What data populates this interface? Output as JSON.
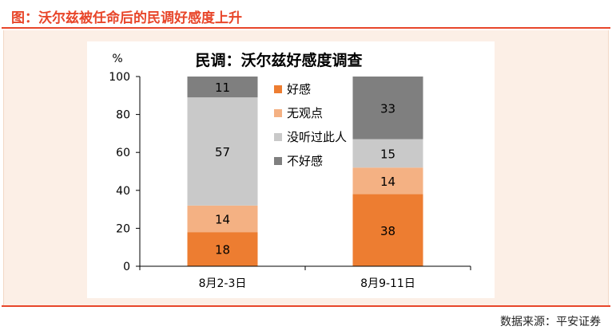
{
  "header": {
    "title": "图：沃尔兹被任命后的民调好感度上升"
  },
  "footer": {
    "source": "数据来源：平安证券"
  },
  "colors": {
    "accent": "#e8462a",
    "panel_bg": "#fcefe6",
    "favorable": "#ed7d31",
    "no_opinion": "#f4b183",
    "never_heard": "#c9c9c9",
    "unfavorable": "#7f7f7f"
  },
  "chart_data": {
    "type": "bar",
    "stacked": true,
    "title": "民调：沃尔兹好感度调查",
    "ylabel": "%",
    "xlabel": "",
    "ylim": [
      0,
      100
    ],
    "yticks": [
      0,
      20,
      40,
      60,
      80,
      100
    ],
    "categories": [
      "8月2-3日",
      "8月9-11日"
    ],
    "legend_position": "center",
    "grid": false,
    "series": [
      {
        "name": "好感",
        "color": "#ed7d31",
        "values": [
          18,
          38
        ]
      },
      {
        "name": "无观点",
        "color": "#f4b183",
        "values": [
          14,
          14
        ]
      },
      {
        "name": "没听过此人",
        "color": "#c9c9c9",
        "values": [
          57,
          15
        ]
      },
      {
        "name": "不好感",
        "color": "#7f7f7f",
        "values": [
          11,
          33
        ]
      }
    ]
  }
}
